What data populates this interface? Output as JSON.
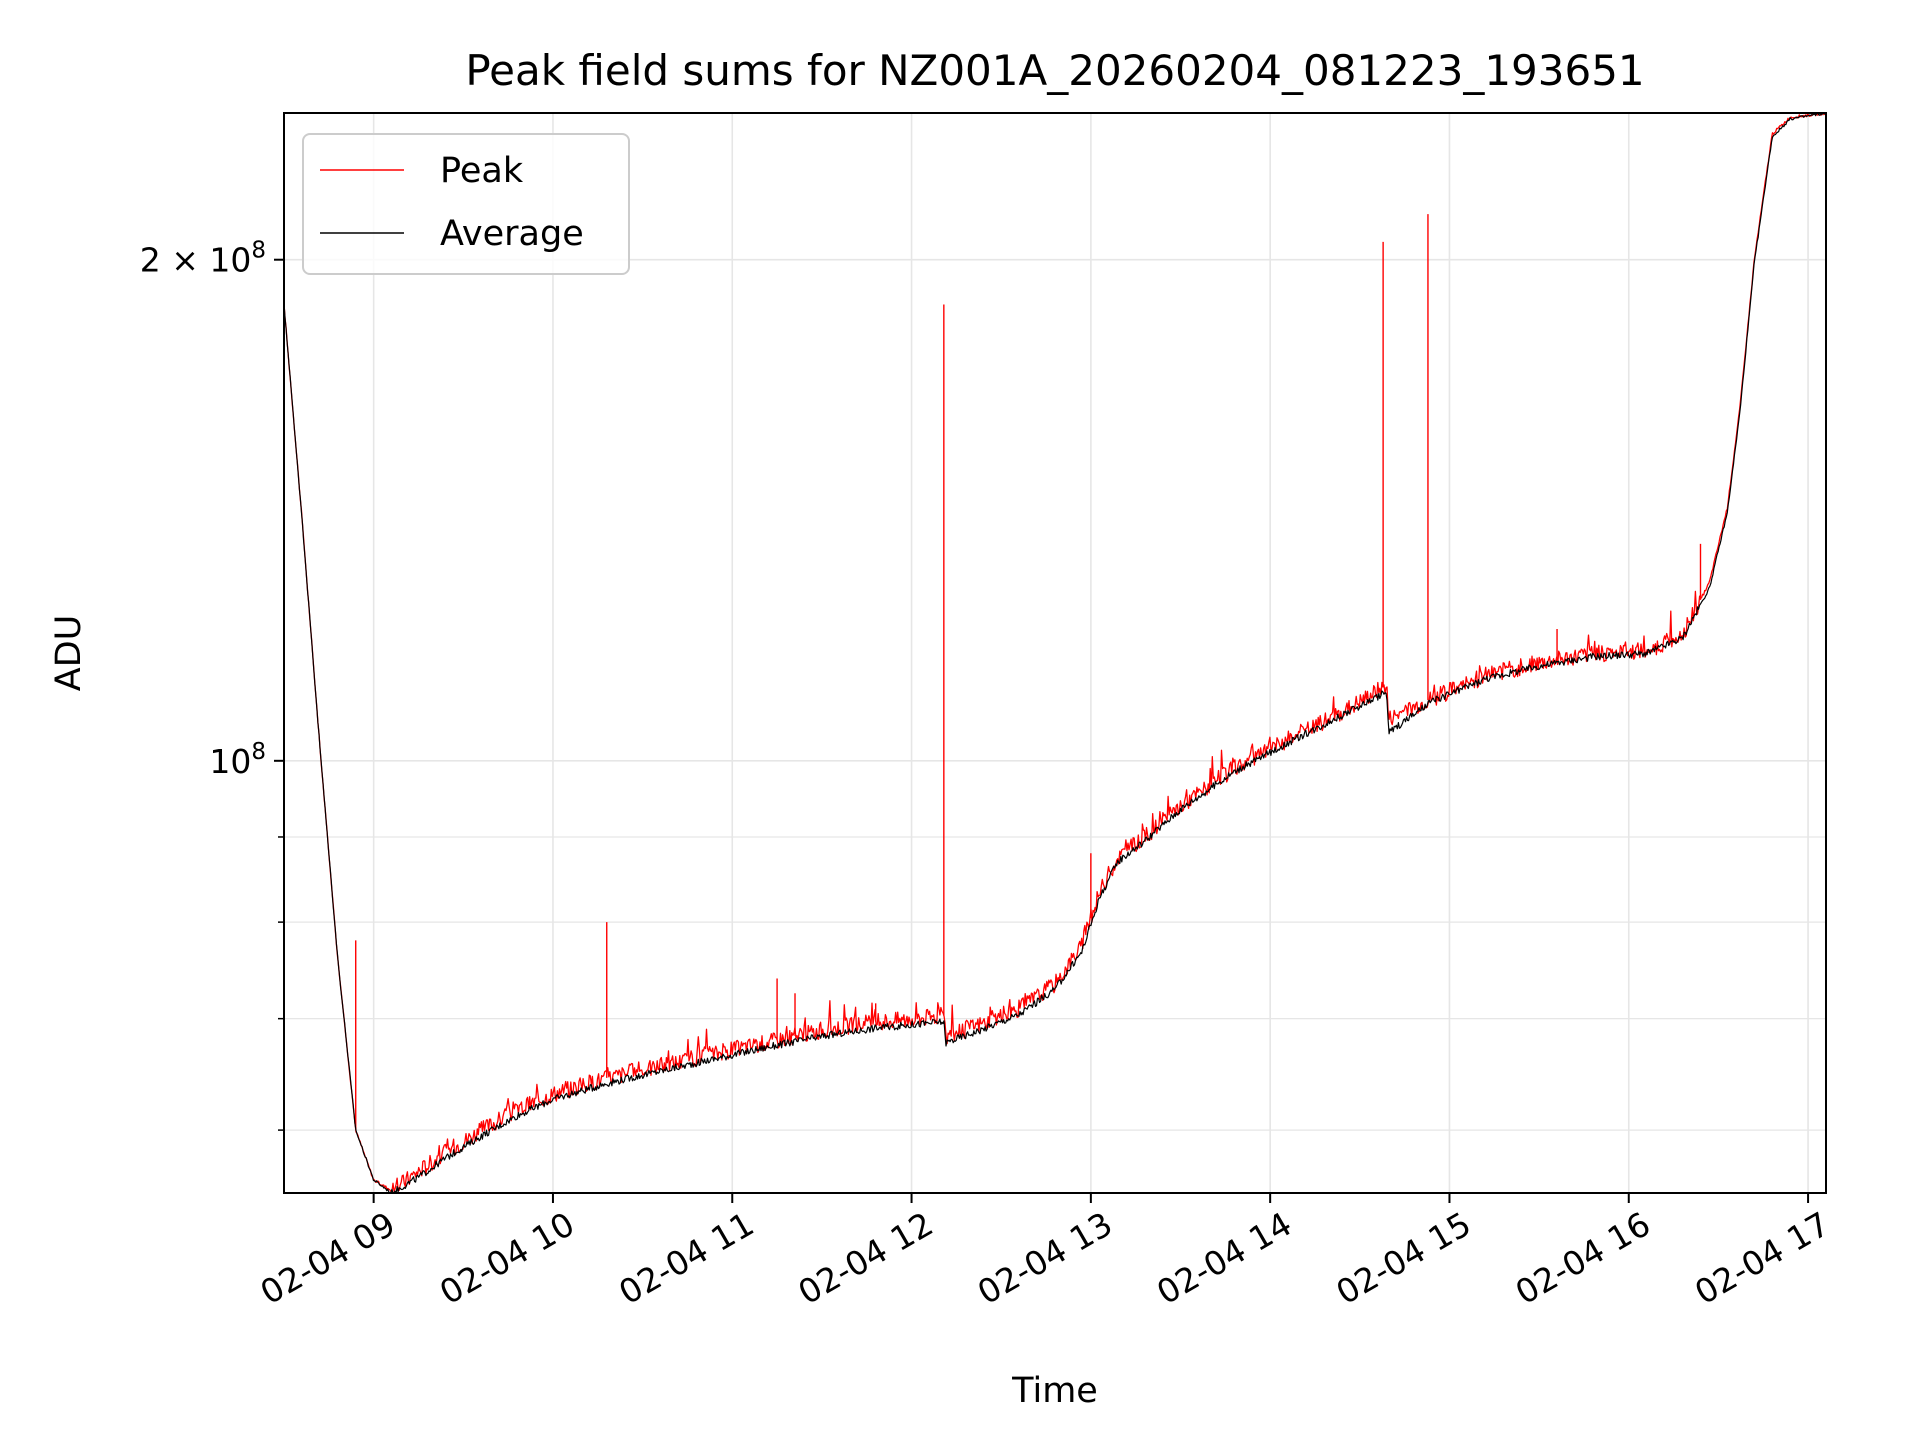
{
  "chart_data": {
    "type": "line",
    "title": "Peak field sums for NZ001A_20260204_081223_193651",
    "xlabel": "Time",
    "ylabel": "ADU",
    "yscale": "log",
    "xlim_hours": [
      8.5,
      17.1
    ],
    "ylim": [
      55000000,
      245000000
    ],
    "x_ticks": [
      {
        "hour": 9,
        "label": "02-04 09"
      },
      {
        "hour": 10,
        "label": "02-04 10"
      },
      {
        "hour": 11,
        "label": "02-04 11"
      },
      {
        "hour": 12,
        "label": "02-04 12"
      },
      {
        "hour": 13,
        "label": "02-04 13"
      },
      {
        "hour": 14,
        "label": "02-04 14"
      },
      {
        "hour": 15,
        "label": "02-04 15"
      },
      {
        "hour": 16,
        "label": "02-04 16"
      },
      {
        "hour": 17,
        "label": "02-04 17"
      }
    ],
    "y_major_ticks": [
      {
        "value": 100000000,
        "base": "10",
        "exp": "8",
        "prefix": ""
      },
      {
        "value": 200000000,
        "base": "10",
        "exp": "8",
        "prefix": "2 × "
      }
    ],
    "y_minor_ticks": [
      60000000,
      70000000,
      80000000,
      90000000
    ],
    "grid": true,
    "legend_position": "upper-left",
    "colors": {
      "peak": "#ff0000",
      "average": "#000000",
      "grid": "#e6e6e6"
    },
    "series": [
      {
        "name": "Peak",
        "color": "#ff0000",
        "points": [
          [
            8.5,
            188000000
          ],
          [
            8.6,
            140000000
          ],
          [
            8.7,
            102000000
          ],
          [
            8.8,
            76000000
          ],
          [
            8.9,
            60000000
          ],
          [
            9.0,
            56000000
          ],
          [
            9.1,
            55200000
          ],
          [
            9.25,
            56700000
          ],
          [
            9.4,
            58200000
          ],
          [
            9.6,
            60000000
          ],
          [
            9.8,
            61700000
          ],
          [
            10.0,
            63100000
          ],
          [
            10.3,
            64500000
          ],
          [
            10.6,
            65600000
          ],
          [
            10.9,
            66700000
          ],
          [
            11.2,
            67800000
          ],
          [
            11.5,
            68900000
          ],
          [
            11.8,
            69700000
          ],
          [
            12.18,
            70300000
          ],
          [
            12.19,
            68300000
          ],
          [
            12.4,
            69600000
          ],
          [
            12.6,
            71000000
          ],
          [
            12.8,
            73500000
          ],
          [
            12.95,
            77500000
          ],
          [
            13.05,
            83500000
          ],
          [
            13.15,
            87500000
          ],
          [
            13.3,
            90000000
          ],
          [
            13.5,
            94000000
          ],
          [
            13.8,
            99000000
          ],
          [
            14.1,
            103000000
          ],
          [
            14.4,
            107000000
          ],
          [
            14.65,
            111000000
          ],
          [
            14.66,
            106000000
          ],
          [
            14.9,
            109000000
          ],
          [
            15.2,
            112500000
          ],
          [
            15.5,
            114500000
          ],
          [
            15.8,
            116000000
          ],
          [
            16.1,
            116500000
          ],
          [
            16.3,
            119000000
          ],
          [
            16.45,
            128000000
          ],
          [
            16.55,
            142000000
          ],
          [
            16.62,
            163000000
          ],
          [
            16.7,
            200000000
          ],
          [
            16.8,
            238000000
          ],
          [
            16.9,
            243500000
          ],
          [
            17.1,
            245000000
          ]
        ],
        "spikes": [
          [
            8.9,
            78000000
          ],
          [
            10.3,
            80000000
          ],
          [
            11.25,
            74000000
          ],
          [
            11.35,
            72500000
          ],
          [
            11.8,
            71500000
          ],
          [
            12.18,
            188000000
          ],
          [
            13.0,
            88000000
          ],
          [
            14.63,
            205000000
          ],
          [
            14.88,
            213000000
          ],
          [
            15.6,
            120000000
          ],
          [
            16.4,
            135000000
          ]
        ]
      },
      {
        "name": "Average",
        "color": "#000000",
        "points": [
          [
            8.5,
            188000000
          ],
          [
            8.6,
            140000000
          ],
          [
            8.7,
            102000000
          ],
          [
            8.8,
            76000000
          ],
          [
            8.9,
            60000000
          ],
          [
            9.0,
            56000000
          ],
          [
            9.1,
            55000000
          ],
          [
            9.25,
            56200000
          ],
          [
            9.4,
            57700000
          ],
          [
            9.6,
            59500000
          ],
          [
            9.8,
            61200000
          ],
          [
            10.0,
            62600000
          ],
          [
            10.3,
            64000000
          ],
          [
            10.6,
            65100000
          ],
          [
            10.9,
            66200000
          ],
          [
            11.2,
            67300000
          ],
          [
            11.5,
            68300000
          ],
          [
            11.8,
            69100000
          ],
          [
            12.18,
            69700000
          ],
          [
            12.19,
            67700000
          ],
          [
            12.4,
            69000000
          ],
          [
            12.6,
            70400000
          ],
          [
            12.8,
            72900000
          ],
          [
            12.95,
            76800000
          ],
          [
            13.05,
            82800000
          ],
          [
            13.15,
            87000000
          ],
          [
            13.3,
            89500000
          ],
          [
            13.5,
            93500000
          ],
          [
            13.8,
            98500000
          ],
          [
            14.1,
            102500000
          ],
          [
            14.4,
            106500000
          ],
          [
            14.65,
            110000000
          ],
          [
            14.66,
            104000000
          ],
          [
            14.9,
            108500000
          ],
          [
            15.2,
            112000000
          ],
          [
            15.5,
            114000000
          ],
          [
            15.8,
            115500000
          ],
          [
            16.1,
            116000000
          ],
          [
            16.3,
            118500000
          ],
          [
            16.45,
            127000000
          ],
          [
            16.55,
            141000000
          ],
          [
            16.62,
            162000000
          ],
          [
            16.7,
            199000000
          ],
          [
            16.8,
            237000000
          ],
          [
            16.9,
            243000000
          ],
          [
            17.1,
            245000000
          ]
        ],
        "spikes": []
      }
    ]
  }
}
